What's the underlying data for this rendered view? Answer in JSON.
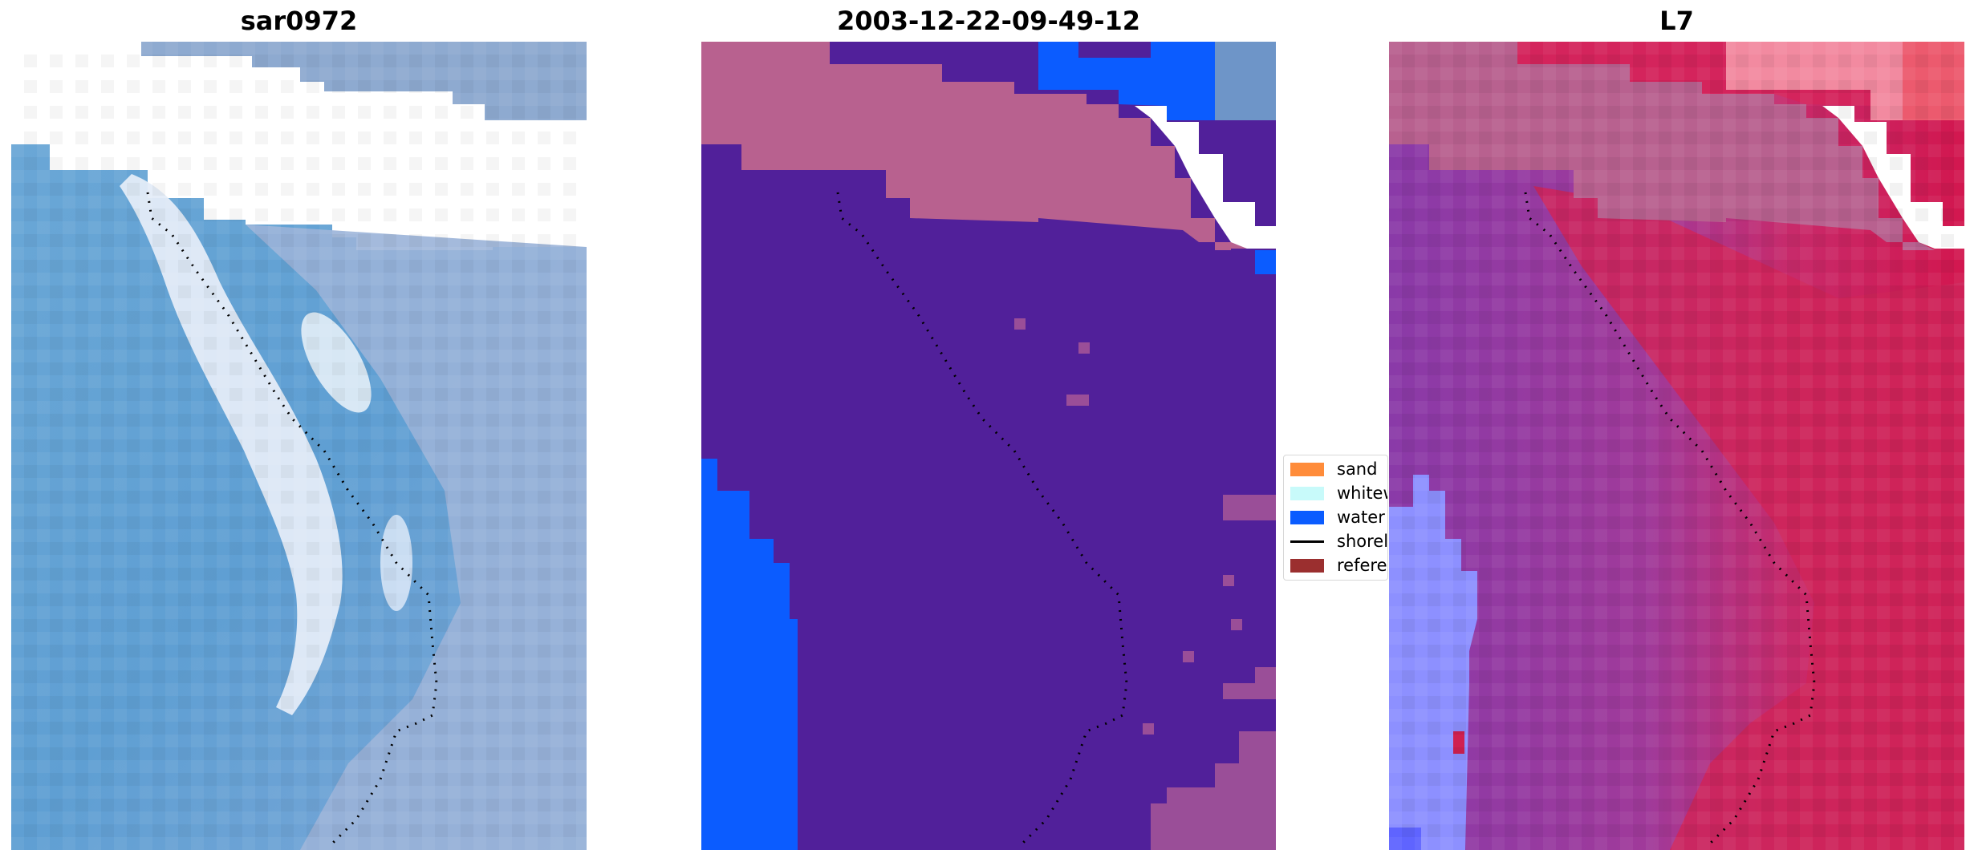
{
  "panels": [
    {
      "title": "sar0972"
    },
    {
      "title": "2003-12-22-09-49-12"
    },
    {
      "title": "L7"
    }
  ],
  "legend": {
    "items": [
      {
        "label": "sand",
        "color": "#ff8c3a",
        "kind": "patch"
      },
      {
        "label": "whitewater",
        "color": "#c8fafa",
        "kind": "patch"
      },
      {
        "label": "water",
        "color": "#0b5cff",
        "kind": "patch"
      },
      {
        "label": "shoreline",
        "color": "#000000",
        "kind": "line"
      },
      {
        "label": "reference",
        "color": "#9b2f2f",
        "kind": "patch"
      }
    ]
  },
  "colors": {
    "classified_background": "#51209a",
    "no_data_pink": "#b8618f",
    "water_blue": "#0b5cff",
    "rgb_sea": "#5b9fd2",
    "rgb_whitewater": "#dde6f4",
    "index_purple": "#8c3caa",
    "index_red": "#d2174f",
    "index_blue": "#7f86ff"
  }
}
